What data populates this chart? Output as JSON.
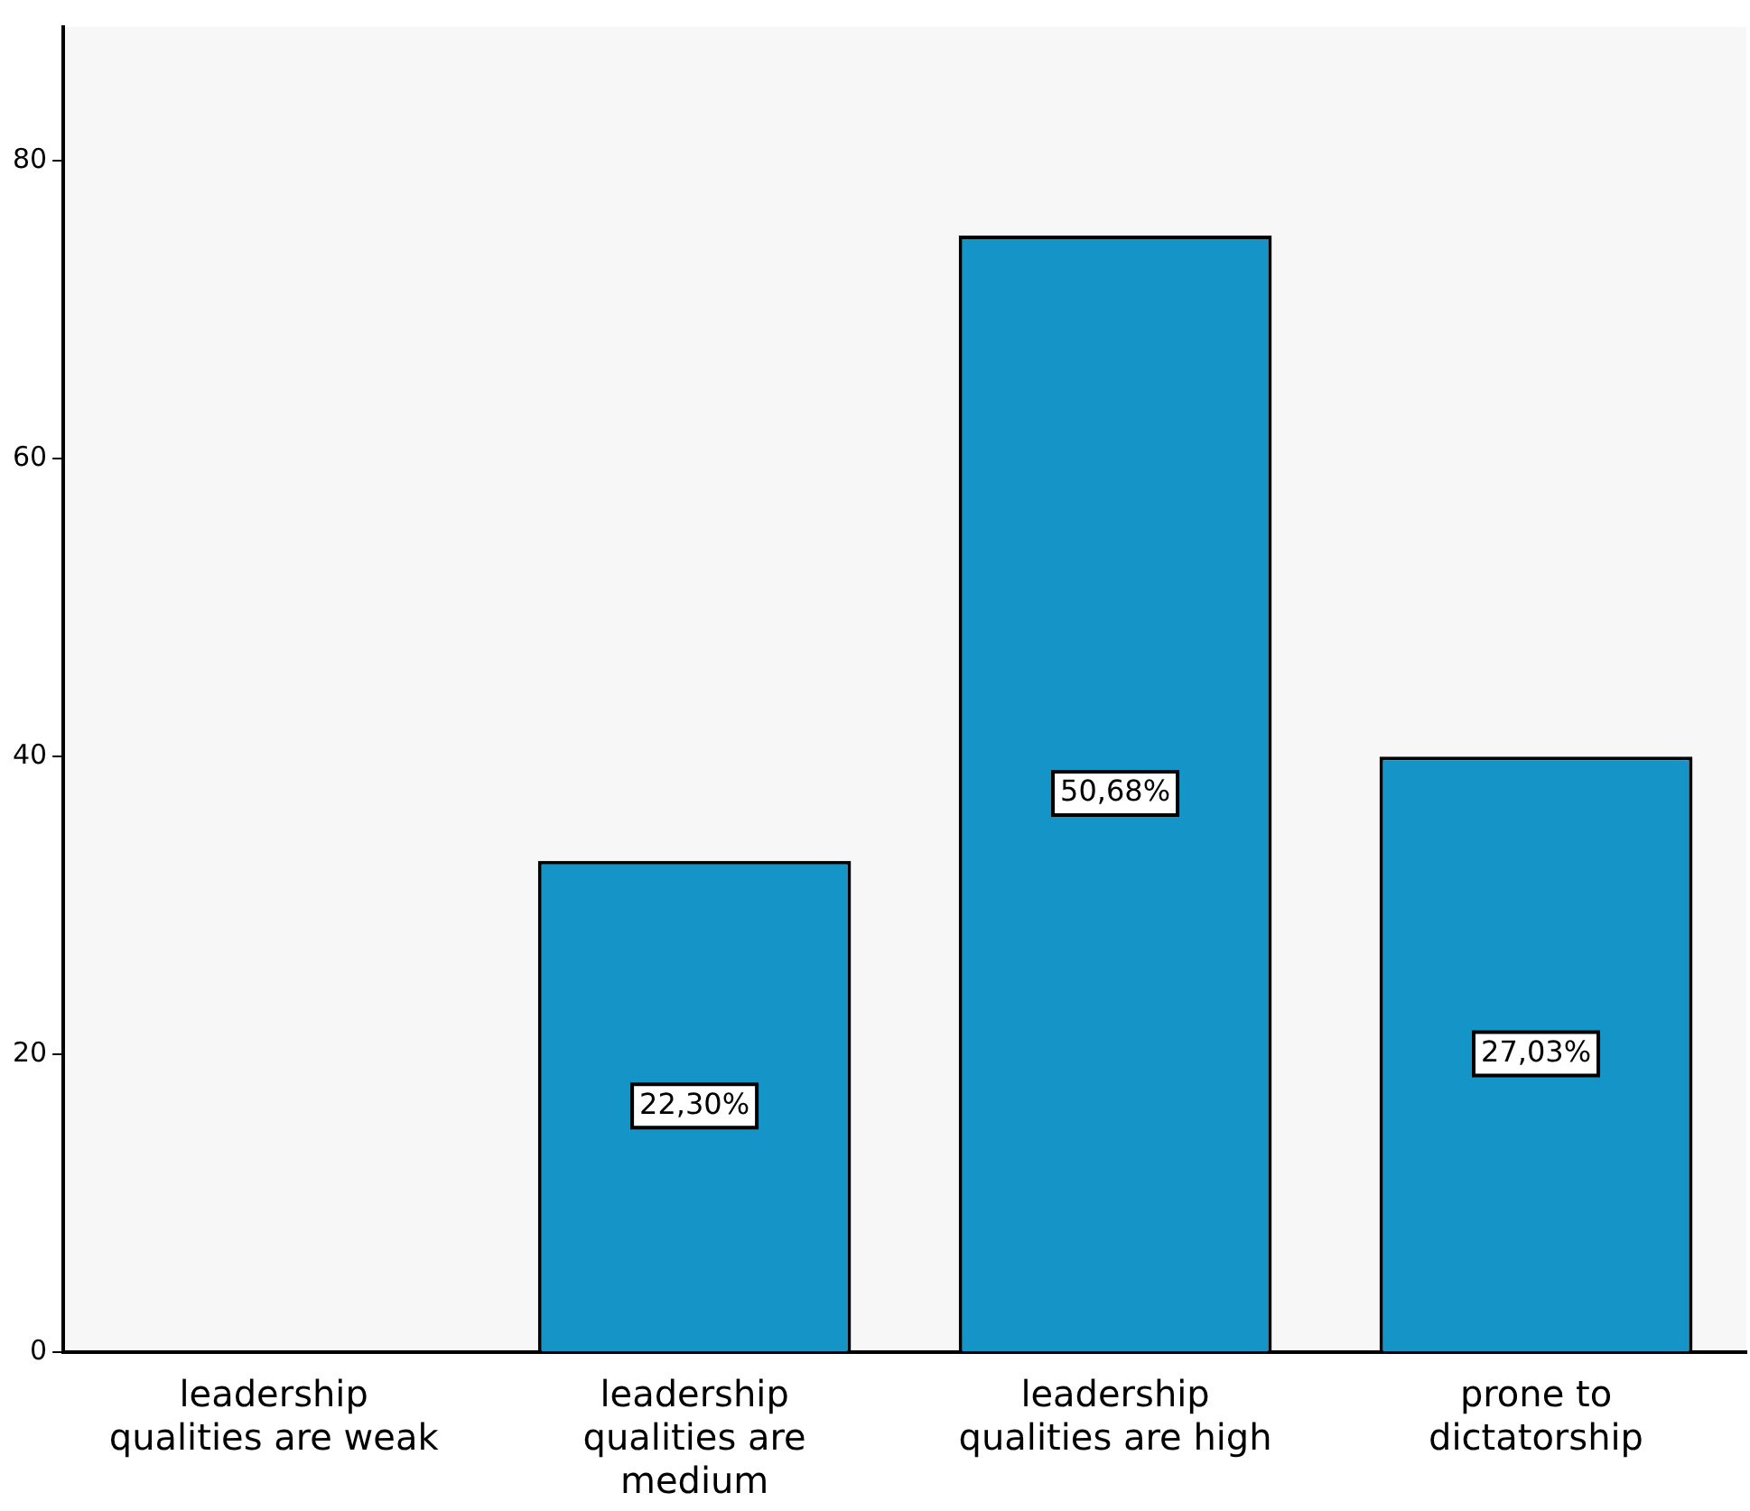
{
  "chart_data": {
    "type": "bar",
    "categories": [
      "leadership qualities are weak",
      "leadership qualities are medium",
      "leadership qualities are high",
      "prone to dictatorship"
    ],
    "values": [
      0,
      33,
      75,
      40
    ],
    "color": "#1594c8",
    "annotations": [
      "22,30%",
      "50,68%",
      "27,03%"
    ],
    "ylim": [
      0,
      89
    ],
    "yticks": [
      0,
      20,
      40,
      60,
      80
    ],
    "grid": false,
    "legend": false
  }
}
